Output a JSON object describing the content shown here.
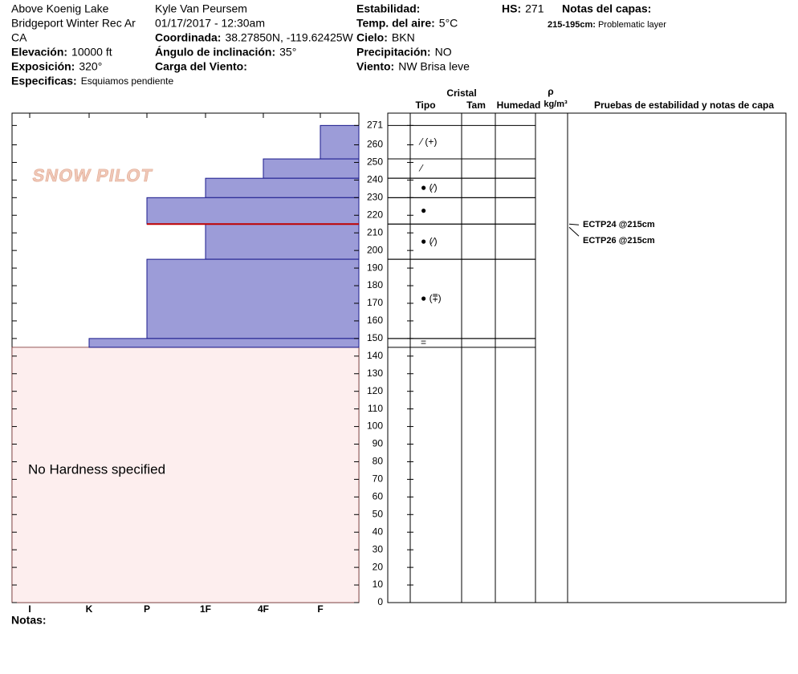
{
  "header": {
    "col1": [
      {
        "value": "Above Koenig Lake"
      },
      {
        "value": "Bridgeport Winter Rec Ar"
      },
      {
        "value": "CA"
      },
      {
        "label": "Elevación:",
        "value": "10000 ft"
      },
      {
        "label": "Exposición:",
        "value": "320°"
      },
      {
        "label": "Especificas:",
        "value": "Esquiamos pendiente"
      }
    ],
    "col2": [
      {
        "value": "Kyle Van Peursem"
      },
      {
        "value": "01/17/2017 - 12:30am"
      },
      {
        "label": "Coordinada:",
        "value": "38.27850N, -119.62425W"
      },
      {
        "label": "Ángulo de inclinación:",
        "value": "35°"
      },
      {
        "label": "Carga del Viento:"
      }
    ],
    "col3": [
      {
        "label": "Estabilidad:"
      },
      {
        "label": "Temp. del aire:",
        "value": "5°C"
      },
      {
        "label": "Cielo:",
        "value": "BKN"
      },
      {
        "label": "Precipitación:",
        "value": "NO"
      },
      {
        "label": "Viento:",
        "value": "NW Brisa leve"
      }
    ],
    "hs": {
      "label": "HS:",
      "value": "271"
    },
    "notes_title": "Notas del capas:",
    "layer_notes": [
      {
        "range": "215-195cm:",
        "text": "Problematic layer"
      }
    ]
  },
  "logo": "SNOW PILOT",
  "columns": {
    "crystal": "Cristal",
    "type": "Tipo",
    "size": "Tam",
    "moisture": "Humedad",
    "rho": "ρ",
    "density_unit": "kg/m³",
    "tests": "Pruebas de estabilidad y notas de capa"
  },
  "hardness_labels": [
    "I",
    "K",
    "P",
    "1F",
    "4F",
    "F"
  ],
  "ylim": [
    0,
    278
  ],
  "yticks": [
    0,
    10,
    20,
    30,
    40,
    50,
    60,
    70,
    80,
    90,
    100,
    110,
    120,
    130,
    140,
    150,
    160,
    170,
    180,
    190,
    200,
    210,
    220,
    230,
    240,
    250,
    260,
    271
  ],
  "layers": [
    {
      "top": 271,
      "bottom": 252,
      "hardness": "F",
      "grain": "⁄ (+)"
    },
    {
      "top": 252,
      "bottom": 241,
      "hardness": "4F",
      "grain": "⁄"
    },
    {
      "top": 241,
      "bottom": 230,
      "hardness": "1F",
      "grain": "● (⁄)"
    },
    {
      "top": 230,
      "bottom": 215,
      "hardness": "P",
      "grain": "●"
    },
    {
      "top": 215,
      "bottom": 195,
      "hardness": "1F",
      "grain": "● (⁄)"
    },
    {
      "top": 195,
      "bottom": 150,
      "hardness": "P",
      "grain": "● (⩱)"
    },
    {
      "top": 150,
      "bottom": 145,
      "hardness": "K",
      "grain": "="
    }
  ],
  "no_hardness": {
    "text": "No Hardness specified",
    "top": 145
  },
  "tests": [
    {
      "label": "ECTP24 @215cm",
      "depth": 215
    },
    {
      "label": "ECTP26 @215cm",
      "depth": 215
    }
  ],
  "footer": "Notas:"
}
